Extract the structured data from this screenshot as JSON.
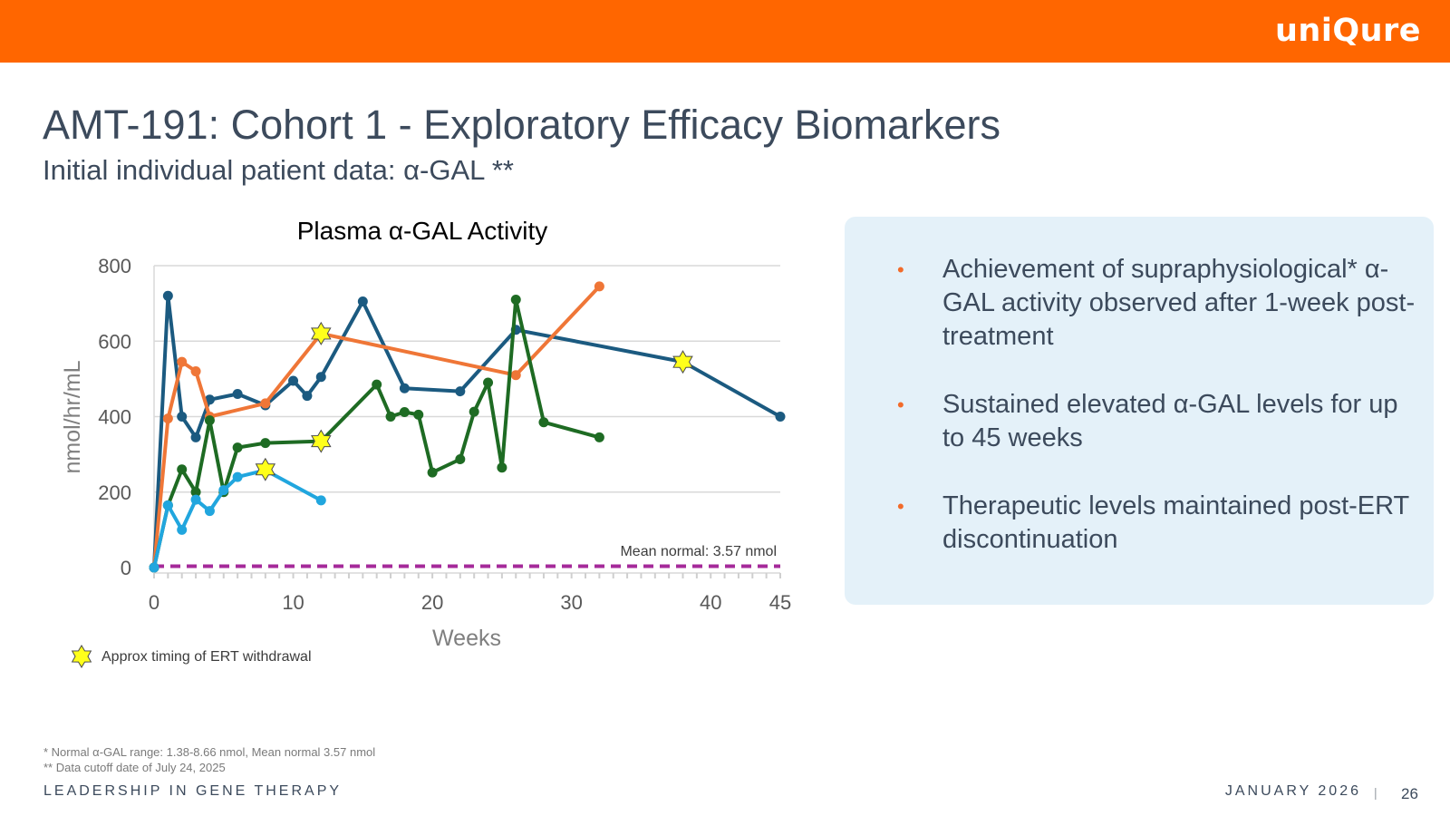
{
  "header": {
    "logo_text": "uniQure",
    "bar_color": "#ff6600"
  },
  "slide": {
    "title": "AMT-191: Cohort 1 - Exploratory Efficacy Biomarkers",
    "subtitle": "Initial individual patient data: α-GAL **"
  },
  "chart_data": {
    "type": "line",
    "title": "Plasma α-GAL Activity",
    "xlabel": "Weeks",
    "ylabel": "nmol/hr/mL",
    "xlim": [
      0,
      45
    ],
    "ylim": [
      0,
      800
    ],
    "x_ticks": [
      0,
      10,
      20,
      30,
      40,
      45
    ],
    "y_ticks": [
      0,
      200,
      400,
      600,
      800
    ],
    "grid": true,
    "series": [
      {
        "color": "#1b5a80",
        "points": [
          [
            0,
            0
          ],
          [
            1,
            720
          ],
          [
            2,
            400
          ],
          [
            3,
            345
          ],
          [
            4,
            445
          ],
          [
            6,
            460
          ],
          [
            8,
            430
          ],
          [
            10,
            495
          ],
          [
            11,
            455
          ],
          [
            12,
            505
          ],
          [
            15,
            705
          ],
          [
            18,
            475
          ],
          [
            22,
            467
          ],
          [
            26,
            630
          ],
          [
            38,
            545
          ],
          [
            45,
            400
          ]
        ]
      },
      {
        "color": "#ef7637",
        "points": [
          [
            0,
            0
          ],
          [
            1,
            395
          ],
          [
            2,
            545
          ],
          [
            3,
            520
          ],
          [
            4,
            400
          ],
          [
            8,
            435
          ],
          [
            12,
            620
          ],
          [
            26,
            510
          ],
          [
            32,
            745
          ]
        ]
      },
      {
        "color": "#1e6b23",
        "points": [
          [
            0,
            0
          ],
          [
            1,
            165
          ],
          [
            2,
            260
          ],
          [
            3,
            200
          ],
          [
            4,
            390
          ],
          [
            5,
            200
          ],
          [
            6,
            318
          ],
          [
            8,
            330
          ],
          [
            12,
            335
          ],
          [
            16,
            485
          ],
          [
            17,
            400
          ],
          [
            18,
            412
          ],
          [
            19,
            405
          ],
          [
            20,
            252
          ],
          [
            22,
            287
          ],
          [
            23,
            413
          ],
          [
            24,
            490
          ],
          [
            25,
            265
          ],
          [
            26,
            710
          ],
          [
            28,
            385
          ],
          [
            32,
            345
          ]
        ]
      },
      {
        "color": "#21a6de",
        "points": [
          [
            0,
            0
          ],
          [
            1,
            165
          ],
          [
            2,
            100
          ],
          [
            3,
            180
          ],
          [
            4,
            150
          ],
          [
            5,
            205
          ],
          [
            6,
            240
          ],
          [
            8,
            258
          ],
          [
            12,
            178
          ]
        ]
      }
    ],
    "ert_withdrawal_markers": [
      [
        8,
        260
      ],
      [
        12,
        620
      ],
      [
        12,
        335
      ],
      [
        38,
        545
      ]
    ],
    "reference_line": {
      "y": 3.57,
      "label": "Mean normal: 3.57 nmol",
      "color": "#a52a9a"
    },
    "marker_legend": "Approx timing of ERT withdrawal"
  },
  "bullets": [
    "Achievement of supraphysiological* α-GAL activity observed after 1-week post-treatment",
    "Sustained elevated α-GAL levels for up to 45 weeks",
    "Therapeutic levels maintained post-ERT discontinuation"
  ],
  "bullet_symbol": "•",
  "footnotes": [
    "* Normal α-GAL range: 1.38-8.66 nmol, Mean normal 3.57 nmol",
    "** Data cutoff date of July 24, 2025"
  ],
  "footer": {
    "left": "LEADERSHIP IN GENE THERAPY",
    "date": "JANUARY 2026",
    "separator": "|",
    "page": "26"
  }
}
